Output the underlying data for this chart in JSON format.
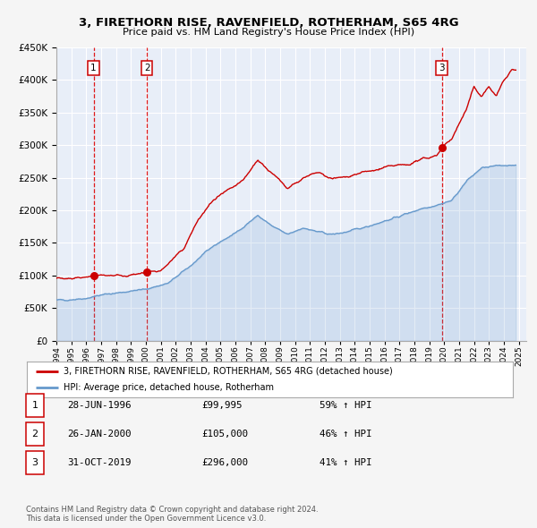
{
  "title": "3, FIRETHORN RISE, RAVENFIELD, ROTHERHAM, S65 4RG",
  "subtitle": "Price paid vs. HM Land Registry's House Price Index (HPI)",
  "sale_dates": [
    1996.49,
    2000.07,
    2019.83
  ],
  "sale_prices": [
    99995,
    105000,
    296000
  ],
  "sale_labels": [
    "1",
    "2",
    "3"
  ],
  "hpi_color": "#6699cc",
  "price_color": "#cc0000",
  "plot_bg_color": "#e8eef8",
  "grid_color": "#ffffff",
  "ylim": [
    0,
    450000
  ],
  "xlim": [
    1994.0,
    2025.5
  ],
  "yticks": [
    0,
    50000,
    100000,
    150000,
    200000,
    250000,
    300000,
    350000,
    400000,
    450000
  ],
  "xticks": [
    1994,
    1995,
    1996,
    1997,
    1998,
    1999,
    2000,
    2001,
    2002,
    2003,
    2004,
    2005,
    2006,
    2007,
    2008,
    2009,
    2010,
    2011,
    2012,
    2013,
    2014,
    2015,
    2016,
    2017,
    2018,
    2019,
    2020,
    2021,
    2022,
    2023,
    2024,
    2025
  ],
  "legend_label_price": "3, FIRETHORN RISE, RAVENFIELD, ROTHERHAM, S65 4RG (detached house)",
  "legend_label_hpi": "HPI: Average price, detached house, Rotherham",
  "table_rows": [
    [
      "1",
      "28-JUN-1996",
      "£99,995",
      "59% ↑ HPI"
    ],
    [
      "2",
      "26-JAN-2000",
      "£105,000",
      "46% ↑ HPI"
    ],
    [
      "3",
      "31-OCT-2019",
      "£296,000",
      "41% ↑ HPI"
    ]
  ],
  "footer": "Contains HM Land Registry data © Crown copyright and database right 2024.\nThis data is licensed under the Open Government Licence v3.0.",
  "vline_color": "#dd0000",
  "hpi_anchors_x": [
    1994.0,
    1995.0,
    1996.0,
    1997.0,
    1998.0,
    1999.0,
    2000.0,
    2001.5,
    2003.0,
    2004.5,
    2006.0,
    2007.5,
    2008.5,
    2009.5,
    2010.5,
    2011.5,
    2012.5,
    2013.5,
    2014.5,
    2015.5,
    2016.5,
    2017.5,
    2018.5,
    2019.5,
    2020.5,
    2021.5,
    2022.5,
    2023.5,
    2024.5
  ],
  "hpi_anchors_y": [
    62000,
    63000,
    65000,
    70000,
    73000,
    76000,
    79000,
    88000,
    115000,
    145000,
    165000,
    192000,
    175000,
    163000,
    173000,
    167000,
    163000,
    167000,
    173000,
    180000,
    187000,
    195000,
    203000,
    208000,
    215000,
    245000,
    265000,
    268000,
    270000
  ],
  "price_anchors_x": [
    1994.0,
    1996.0,
    1996.49,
    1997.5,
    1998.5,
    1999.5,
    2000.07,
    2001.0,
    2002.5,
    2003.5,
    2004.5,
    2005.5,
    2006.5,
    2007.5,
    2008.5,
    2009.5,
    2010.5,
    2011.5,
    2012.5,
    2013.5,
    2014.5,
    2015.5,
    2016.5,
    2017.5,
    2018.5,
    2019.5,
    2019.83,
    2020.5,
    2021.5,
    2022.0,
    2022.5,
    2023.0,
    2023.5,
    2024.0,
    2024.5
  ],
  "price_anchors_y": [
    95000,
    97000,
    99995,
    100500,
    100000,
    101000,
    105000,
    107000,
    140000,
    185000,
    215000,
    230000,
    245000,
    278000,
    255000,
    235000,
    248000,
    258000,
    248000,
    252000,
    258000,
    262000,
    268000,
    270000,
    278000,
    285000,
    296000,
    310000,
    355000,
    390000,
    375000,
    390000,
    375000,
    400000,
    415000
  ]
}
